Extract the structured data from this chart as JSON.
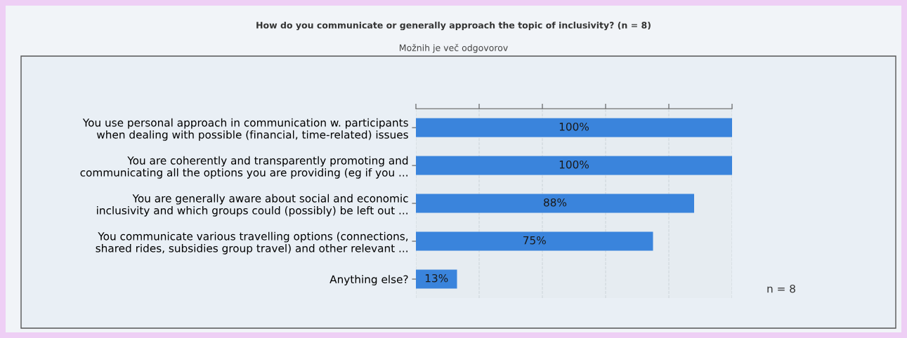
{
  "chart_data": {
    "type": "bar",
    "orientation": "horizontal",
    "title": "How do you communicate or generally approach the topic of inclusivity? (n = 8)",
    "subtitle": "Možnih je več odgovorov",
    "categories": [
      "You use personal approach in communication w. participants\nwhen dealing with possible (financial, time-related) issues",
      "You are coherently and transparently promoting and\ncommunicating all the options you are providing (eg if you ...",
      "You are generally aware about social and economic\ninclusivity and which groups could (possibly) be left out ...",
      "You communicate various travelling options (connections,\nshared rides, subsidies group travel) and other relevant ...",
      "Anything else?"
    ],
    "values": [
      100,
      100,
      88,
      75,
      13
    ],
    "value_labels": [
      "100%",
      "100%",
      "88%",
      "75%",
      "13%"
    ],
    "color": "#3a84dc",
    "xlim": [
      0,
      100
    ],
    "xticks": [
      {
        "value": 0,
        "label": null
      },
      {
        "value": 20,
        "label": null
      },
      {
        "value": 40,
        "label": null
      },
      {
        "value": 60,
        "label": null
      },
      {
        "value": 80,
        "label": null
      },
      {
        "value": 100,
        "label": null
      }
    ],
    "tick_labels": "y",
    "grid": "x",
    "annotations": [
      "n = 8"
    ]
  }
}
